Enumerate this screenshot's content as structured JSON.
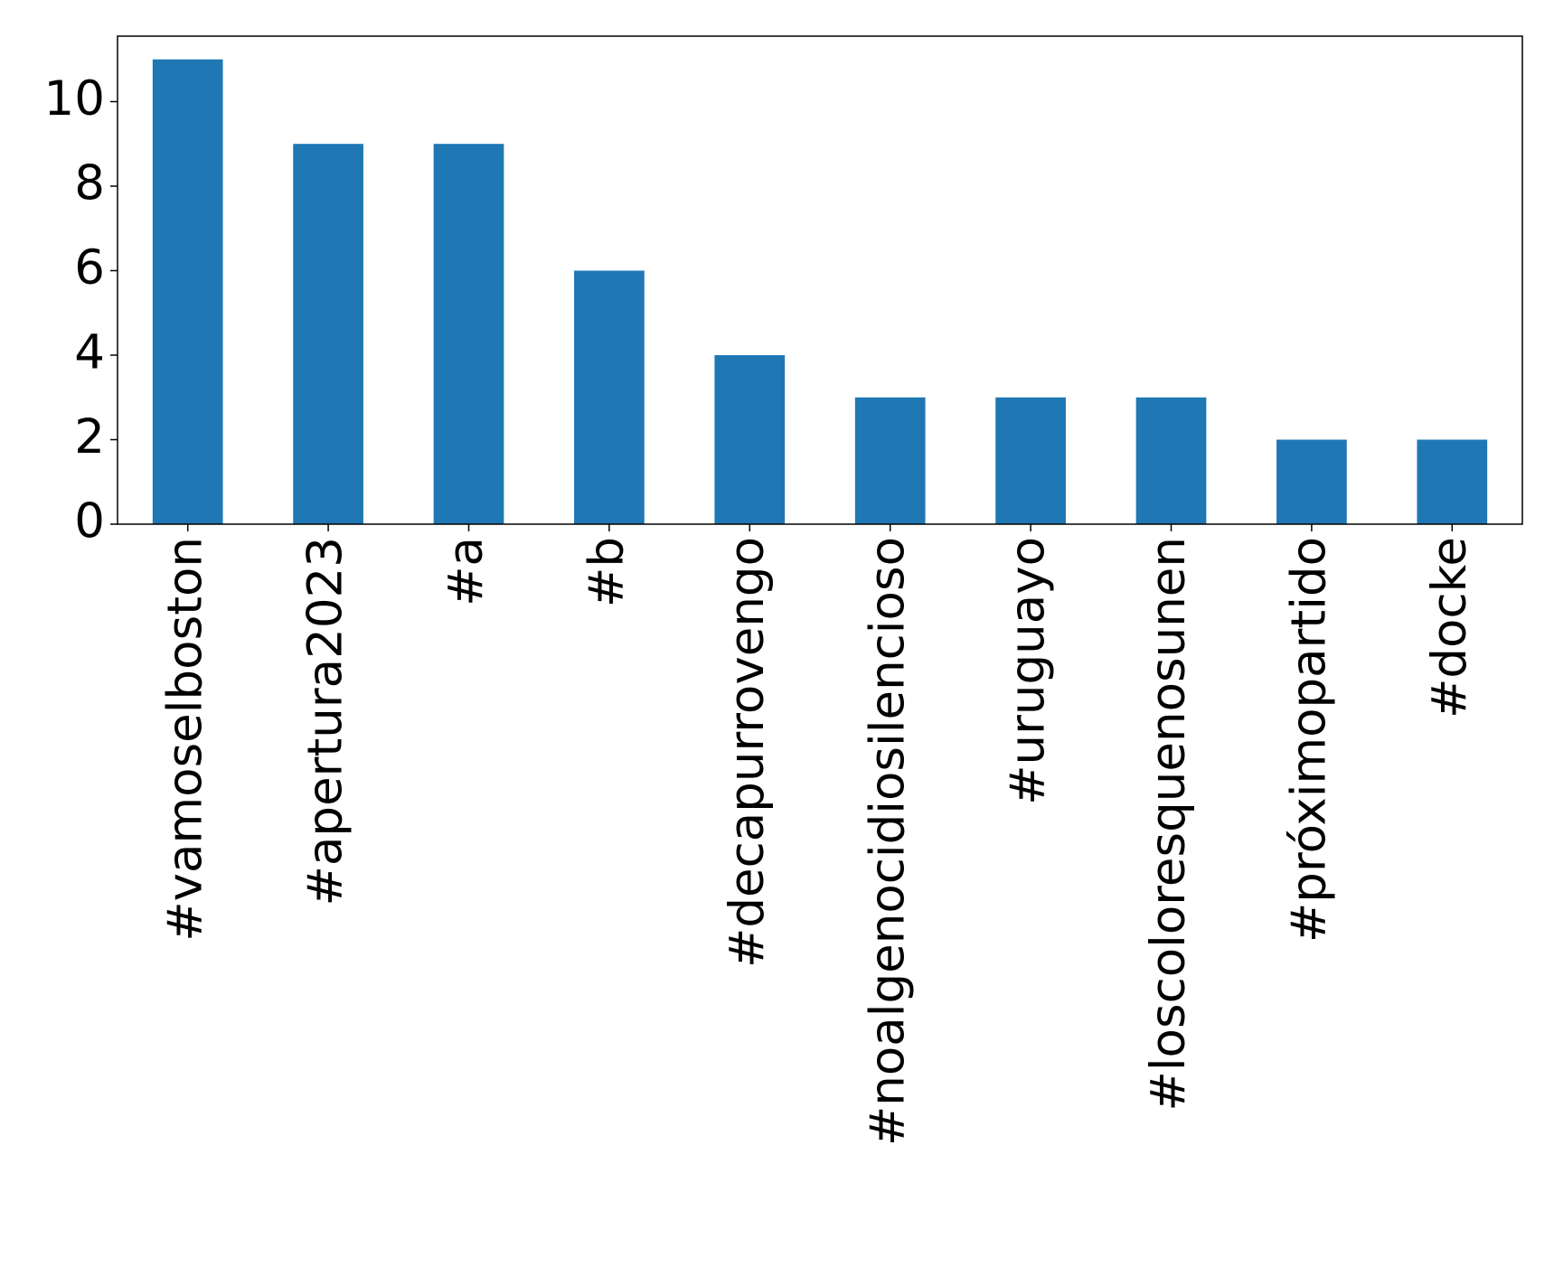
{
  "chart_data": {
    "type": "bar",
    "categories": [
      "#vamoselboston",
      "#apertura2023",
      "#a",
      "#b",
      "#decapurrovengo",
      "#noalgenocidiosilencioso",
      "#uruguayo",
      "#loscoloresquenosunen",
      "#próximopartido",
      "#docke"
    ],
    "values": [
      11,
      9,
      9,
      6,
      4,
      3,
      3,
      3,
      2,
      2
    ],
    "color": "#1f77b4",
    "ylim": [
      0,
      11.55
    ],
    "yticks": [
      0,
      2,
      4,
      6,
      8,
      10
    ],
    "grid": false
  }
}
